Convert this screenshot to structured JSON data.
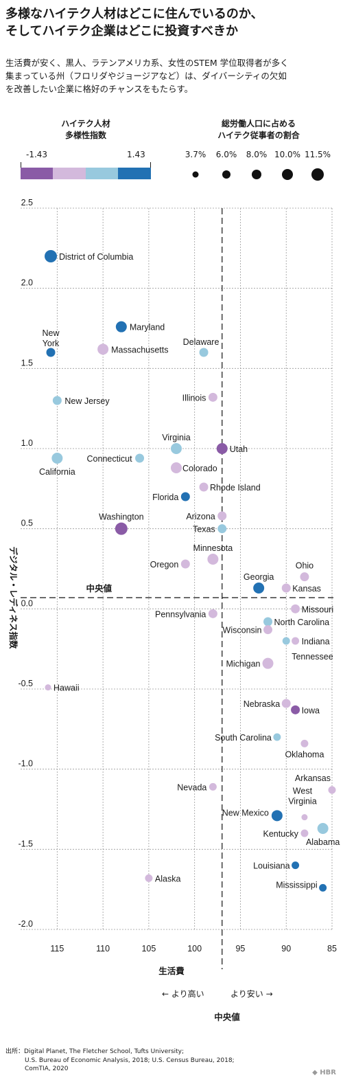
{
  "title": [
    "多様なハイテク人材はどこに住んでいるのか、",
    "そしてハイテク企業はどこに投資すべきか"
  ],
  "subtitle": [
    "生活費が安く、黒人、ラテンアメリカ系、女性のSTEM 学位取得者が多く",
    "集まっている州（フロリダやジョージアなど）は、ダイバーシティの欠如",
    "を改善したい企業に格好のチャンスをもたらす。"
  ],
  "legend": {
    "color_title": [
      "ハイテク人材",
      "多様性指数"
    ],
    "color_min_label": "-1.43",
    "color_max_label": "1.43",
    "colors": [
      "#8a5ba6",
      "#d3b9dc",
      "#98c9de",
      "#2271b3"
    ],
    "size_title": [
      "総労働人口に占める",
      "ハイテク従事者の割合"
    ],
    "size_labels": [
      "3.7%",
      "6.0%",
      "8.0%",
      "10.0%",
      "11.5%"
    ]
  },
  "axes": {
    "xlabel": "生活費",
    "ylabel": "デジタル・レディネス指数",
    "x_dir_left": "←  より高い",
    "x_dir_right": "より安い  →",
    "x_median_label": "中央値",
    "y_median_label": "中央値"
  },
  "source": [
    "出所：Digital Planet, The Fletcher School, Tufts University;",
    "U.S. Bureau of Economic Analysis, 2018; U.S. Census Bureau, 2018;",
    "ComTIA, 2020"
  ],
  "brand": "HBR",
  "chart_data": {
    "type": "scatter",
    "x_axis": {
      "range": [
        116,
        85
      ],
      "ticks": [
        115,
        110,
        105,
        100,
        95,
        90,
        85
      ],
      "median": 97
    },
    "y_axis": {
      "range": [
        -2.0,
        2.5
      ],
      "ticks": [
        "2.5",
        "2.0",
        "1.5",
        "1.0",
        "0.5",
        "0.0",
        "-0.5",
        "-1.0",
        "-1.5",
        "-2.0"
      ],
      "median": 0.07
    },
    "grid": true,
    "points": [
      {
        "name": "District of Columbia",
        "x": 115.7,
        "y": 2.2,
        "diversity": "high",
        "size": 11.5
      },
      {
        "name": "Maryland",
        "x": 108,
        "y": 1.76,
        "diversity": "high",
        "size": 10.0
      },
      {
        "name": "New\nYork",
        "x": 115.7,
        "y": 1.6,
        "diversity": "high",
        "size": 8.0
      },
      {
        "name": "Massachusetts",
        "x": 110,
        "y": 1.62,
        "diversity": "low-mid",
        "size": 10.0
      },
      {
        "name": "Delaware",
        "x": 99,
        "y": 1.6,
        "diversity": "mid-high",
        "size": 8.0
      },
      {
        "name": "New Jersey",
        "x": 115,
        "y": 1.3,
        "diversity": "mid-high",
        "size": 8.0
      },
      {
        "name": "Illinois",
        "x": 98,
        "y": 1.32,
        "diversity": "low-mid",
        "size": 8.0
      },
      {
        "name": "Virginia",
        "x": 102,
        "y": 1.0,
        "diversity": "mid-high",
        "size": 10.0
      },
      {
        "name": "Utah",
        "x": 97,
        "y": 1.0,
        "diversity": "low",
        "size": 10.0
      },
      {
        "name": "California",
        "x": 115,
        "y": 0.94,
        "diversity": "mid-high",
        "size": 10.0
      },
      {
        "name": "Connecticut",
        "x": 106,
        "y": 0.94,
        "diversity": "mid-high",
        "size": 8.0
      },
      {
        "name": "Colorado",
        "x": 102,
        "y": 0.88,
        "diversity": "low-mid",
        "size": 10.0
      },
      {
        "name": "Rhode Island",
        "x": 99,
        "y": 0.76,
        "diversity": "low-mid",
        "size": 8.0
      },
      {
        "name": "Florida",
        "x": 101,
        "y": 0.7,
        "diversity": "high",
        "size": 8.0
      },
      {
        "name": "Washington",
        "x": 108,
        "y": 0.5,
        "diversity": "low",
        "size": 11.5
      },
      {
        "name": "Arizona",
        "x": 97,
        "y": 0.58,
        "diversity": "low-mid",
        "size": 8.0
      },
      {
        "name": "Texas",
        "x": 97,
        "y": 0.5,
        "diversity": "mid-high",
        "size": 8.0
      },
      {
        "name": "Minnesota",
        "x": 98,
        "y": 0.31,
        "diversity": "low-mid",
        "size": 10.0
      },
      {
        "name": "Oregon",
        "x": 101,
        "y": 0.28,
        "diversity": "low-mid",
        "size": 8.0
      },
      {
        "name": "Ohio",
        "x": 88,
        "y": 0.2,
        "diversity": "low-mid",
        "size": 8.0
      },
      {
        "name": "Georgia",
        "x": 93,
        "y": 0.13,
        "diversity": "high",
        "size": 10.0
      },
      {
        "name": "Kansas",
        "x": 90,
        "y": 0.13,
        "diversity": "low-mid",
        "size": 8.0
      },
      {
        "name": "Missouri",
        "x": 89,
        "y": 0.0,
        "diversity": "low-mid",
        "size": 8.0
      },
      {
        "name": "Pennsylvania",
        "x": 98,
        "y": -0.03,
        "diversity": "low-mid",
        "size": 8.0
      },
      {
        "name": "North Carolina",
        "x": 92,
        "y": -0.08,
        "diversity": "mid-high",
        "size": 8.0
      },
      {
        "name": "Wisconsin",
        "x": 92,
        "y": -0.13,
        "diversity": "low-mid",
        "size": 8.0
      },
      {
        "name": "Indiana",
        "x": 89,
        "y": -0.2,
        "diversity": "low-mid",
        "size": 6.0
      },
      {
        "name": "Tennessee",
        "x": 90,
        "y": -0.2,
        "diversity": "mid-high",
        "size": 6.0
      },
      {
        "name": "Michigan",
        "x": 92,
        "y": -0.34,
        "diversity": "low-mid",
        "size": 10.0
      },
      {
        "name": "Hawaii",
        "x": 116,
        "y": -0.49,
        "diversity": "low-mid",
        "size": 3.7
      },
      {
        "name": "Nebraska",
        "x": 90,
        "y": -0.59,
        "diversity": "low-mid",
        "size": 8.0
      },
      {
        "name": "Iowa",
        "x": 89,
        "y": -0.63,
        "diversity": "low",
        "size": 8.0
      },
      {
        "name": "South Carolina",
        "x": 91,
        "y": -0.8,
        "diversity": "mid-high",
        "size": 6.0
      },
      {
        "name": "Oklahoma",
        "x": 88,
        "y": -0.84,
        "diversity": "low-mid",
        "size": 6.0
      },
      {
        "name": "Nevada",
        "x": 98,
        "y": -1.11,
        "diversity": "low-mid",
        "size": 6.0
      },
      {
        "name": "Arkansas",
        "x": 85,
        "y": -1.13,
        "diversity": "low-mid",
        "size": 6.0
      },
      {
        "name": "West\nVirginia",
        "x": 88,
        "y": -1.3,
        "diversity": "low-mid",
        "size": 3.7
      },
      {
        "name": "New Mexico",
        "x": 91,
        "y": -1.29,
        "diversity": "high",
        "size": 10.0
      },
      {
        "name": "Kentucky",
        "x": 88,
        "y": -1.4,
        "diversity": "low-mid",
        "size": 6.0
      },
      {
        "name": "Alabama",
        "x": 86,
        "y": -1.37,
        "diversity": "mid-high",
        "size": 10.0
      },
      {
        "name": "Louisiana",
        "x": 89,
        "y": -1.6,
        "diversity": "high",
        "size": 6.0
      },
      {
        "name": "Mississippi",
        "x": 86,
        "y": -1.74,
        "diversity": "high",
        "size": 6.0
      },
      {
        "name": "Alaska",
        "x": 105,
        "y": -1.68,
        "diversity": "low-mid",
        "size": 6.0
      }
    ]
  }
}
